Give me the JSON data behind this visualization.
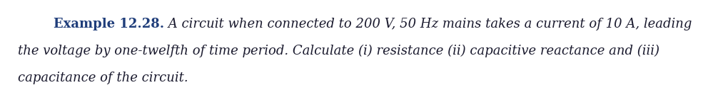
{
  "background_color": "#ffffff",
  "bold_text": "Example 12.28.",
  "bold_color": "#1F3D7A",
  "italic_color": "#1a1a2e",
  "line1_italic": " A circuit when connected to 200 V, 50 Hz mains takes a current of 10 A, leading",
  "line2_italic": "the voltage by one-twelfth of time period. Calculate (i) resistance (ii) capacitive reactance and (iii)",
  "line3_italic": "capacitance of the circuit.",
  "font_size": 13.0,
  "figsize": [
    9.92,
    1.51
  ],
  "dpi": 100
}
